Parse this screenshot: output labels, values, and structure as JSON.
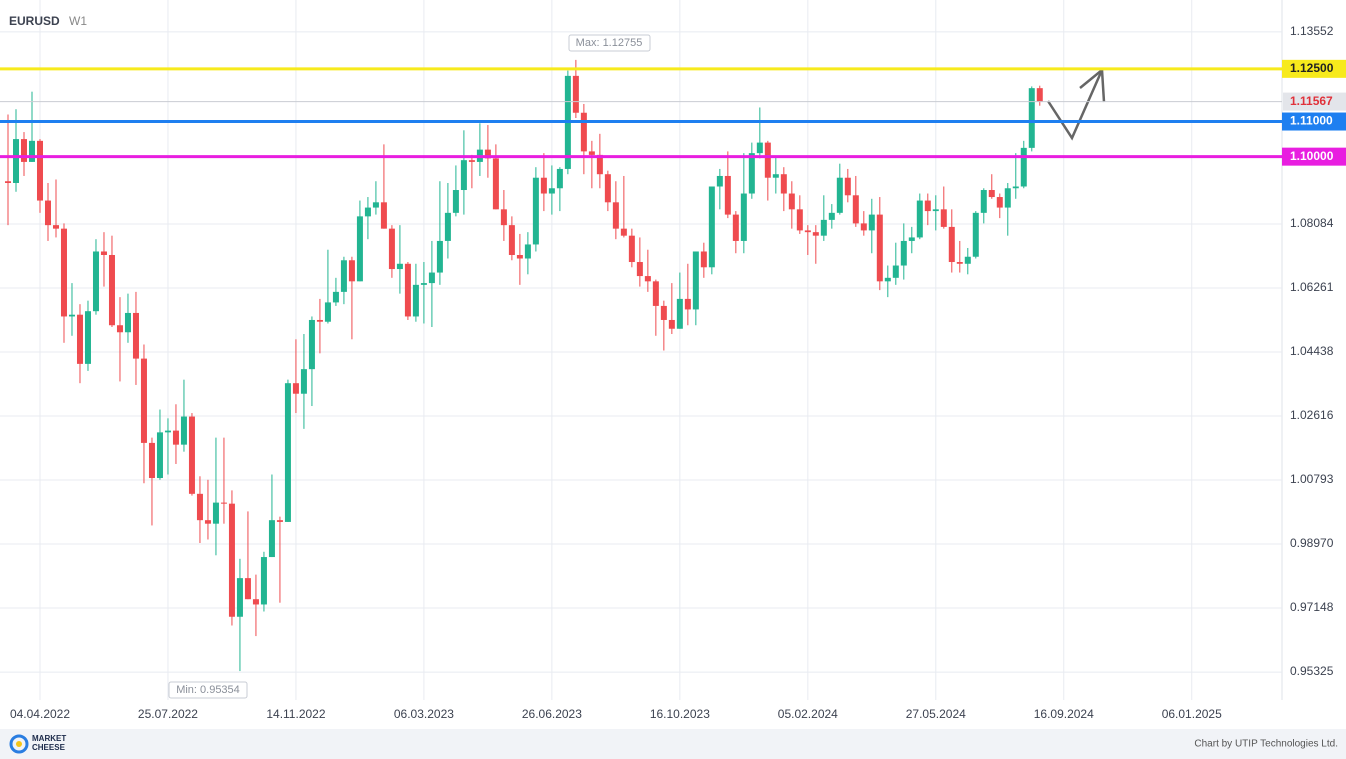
{
  "chart_data": {
    "type": "candlestick",
    "title": "EURUSD",
    "timeframe": "W1",
    "up_color": "#22b592",
    "down_color": "#ef4b4f",
    "x": [
      "07.03.2022",
      "14.03.2022",
      "21.03.2022",
      "28.03.2022",
      "04.04.2022",
      "11.04.2022",
      "18.04.2022",
      "25.04.2022",
      "02.05.2022",
      "09.05.2022",
      "16.05.2022",
      "23.05.2022",
      "30.05.2022",
      "06.06.2022",
      "13.06.2022",
      "20.06.2022",
      "27.06.2022",
      "04.07.2022",
      "11.07.2022",
      "18.07.2022",
      "25.07.2022",
      "01.08.2022",
      "08.08.2022",
      "15.08.2022",
      "22.08.2022",
      "29.08.2022",
      "05.09.2022",
      "12.09.2022",
      "19.09.2022",
      "26.09.2022",
      "03.10.2022",
      "10.10.2022",
      "17.10.2022",
      "24.10.2022",
      "31.10.2022",
      "07.11.2022",
      "14.11.2022",
      "21.11.2022",
      "28.11.2022",
      "05.12.2022",
      "12.12.2022",
      "19.12.2022",
      "26.12.2022",
      "02.01.2023",
      "09.01.2023",
      "16.01.2023",
      "23.01.2023",
      "30.01.2023",
      "06.02.2023",
      "13.02.2023",
      "20.02.2023",
      "27.02.2023",
      "06.03.2023",
      "13.03.2023",
      "20.03.2023",
      "27.03.2023",
      "03.04.2023",
      "10.04.2023",
      "17.04.2023",
      "24.04.2023",
      "01.05.2023",
      "08.05.2023",
      "15.05.2023",
      "22.05.2023",
      "29.05.2023",
      "05.06.2023",
      "12.06.2023",
      "19.06.2023",
      "26.06.2023",
      "03.07.2023",
      "10.07.2023",
      "17.07.2023",
      "24.07.2023",
      "31.07.2023",
      "07.08.2023",
      "14.08.2023",
      "21.08.2023",
      "28.08.2023",
      "04.09.2023",
      "11.09.2023",
      "18.09.2023",
      "25.09.2023",
      "02.10.2023",
      "09.10.2023",
      "16.10.2023",
      "23.10.2023",
      "30.10.2023",
      "06.11.2023",
      "13.11.2023",
      "20.11.2023",
      "27.11.2023",
      "04.12.2023",
      "11.12.2023",
      "18.12.2023",
      "25.12.2023",
      "01.01.2024",
      "08.01.2024",
      "15.01.2024",
      "22.01.2024",
      "29.01.2024",
      "05.02.2024",
      "12.02.2024",
      "19.02.2024",
      "26.02.2024",
      "04.03.2024",
      "11.03.2024",
      "18.03.2024",
      "25.03.2024",
      "01.04.2024",
      "08.04.2024",
      "15.04.2024",
      "22.04.2024",
      "29.04.2024",
      "06.05.2024",
      "13.05.2024",
      "20.05.2024",
      "27.05.2024",
      "03.06.2024",
      "10.06.2024",
      "17.06.2024",
      "24.06.2024",
      "01.07.2024",
      "08.07.2024",
      "15.07.2024",
      "22.07.2024",
      "29.07.2024",
      "05.08.2024",
      "12.08.2024",
      "19.08.2024",
      "26.08.2024"
    ],
    "candles": [
      [
        1.093,
        1.112,
        1.0805,
        1.0925
      ],
      [
        1.0925,
        1.1135,
        1.09,
        1.105
      ],
      [
        1.105,
        1.107,
        1.0945,
        1.0985
      ],
      [
        1.0985,
        1.1185,
        1.0985,
        1.1045
      ],
      [
        1.1045,
        1.105,
        1.084,
        1.0875
      ],
      [
        1.0875,
        1.0925,
        1.076,
        1.0805
      ],
      [
        1.0805,
        1.0935,
        1.077,
        1.0795
      ],
      [
        1.0795,
        1.081,
        1.047,
        1.0545
      ],
      [
        1.0545,
        1.064,
        1.049,
        1.055
      ],
      [
        1.055,
        1.058,
        1.0355,
        1.041
      ],
      [
        1.041,
        1.059,
        1.039,
        1.056
      ],
      [
        1.056,
        1.0765,
        1.055,
        1.073
      ],
      [
        1.073,
        1.0785,
        1.063,
        1.072
      ],
      [
        1.072,
        1.0775,
        1.0515,
        1.052
      ],
      [
        1.052,
        1.06,
        1.036,
        1.05
      ],
      [
        1.05,
        1.061,
        1.047,
        1.0555
      ],
      [
        1.0555,
        1.0615,
        1.035,
        1.0425
      ],
      [
        1.0425,
        1.0465,
        1.007,
        1.0185
      ],
      [
        1.0185,
        1.02,
        0.995,
        1.0085
      ],
      [
        1.0085,
        1.028,
        1.008,
        1.0215
      ],
      [
        1.0215,
        1.0255,
        1.0095,
        1.022
      ],
      [
        1.022,
        1.0295,
        1.0125,
        1.018
      ],
      [
        1.018,
        1.0365,
        1.016,
        1.026
      ],
      [
        1.026,
        1.027,
        1.0035,
        1.004
      ],
      [
        1.004,
        1.009,
        0.99,
        0.9965
      ],
      [
        0.9965,
        1.008,
        0.991,
        0.9955
      ],
      [
        0.9955,
        1.02,
        0.9865,
        1.0015
      ],
      [
        1.0015,
        1.02,
        0.9955,
        1.0012
      ],
      [
        1.0012,
        1.005,
        0.9665,
        0.969
      ],
      [
        0.969,
        0.9855,
        0.95354,
        0.98
      ],
      [
        0.98,
        0.999,
        0.974,
        0.974
      ],
      [
        0.974,
        0.981,
        0.9635,
        0.9725
      ],
      [
        0.9725,
        0.9875,
        0.9705,
        0.986
      ],
      [
        0.986,
        1.0095,
        0.986,
        0.9965
      ],
      [
        0.9965,
        0.9975,
        0.973,
        0.996
      ],
      [
        0.996,
        1.0365,
        0.996,
        1.0355
      ],
      [
        1.0355,
        1.048,
        1.027,
        1.0325
      ],
      [
        1.0325,
        1.0495,
        1.0225,
        1.0395
      ],
      [
        1.0395,
        1.0545,
        1.029,
        1.0535
      ],
      [
        1.0535,
        1.0595,
        1.044,
        1.053
      ],
      [
        1.053,
        1.0735,
        1.0525,
        1.0585
      ],
      [
        1.0585,
        1.0655,
        1.0575,
        1.0615
      ],
      [
        1.0615,
        1.0715,
        1.058,
        1.0705
      ],
      [
        1.0705,
        1.0715,
        1.048,
        1.0645
      ],
      [
        1.0645,
        1.0875,
        1.0645,
        1.083
      ],
      [
        1.083,
        1.0885,
        1.0765,
        1.0855
      ],
      [
        1.0855,
        1.093,
        1.0835,
        1.087
      ],
      [
        1.087,
        1.1035,
        1.0795,
        1.0795
      ],
      [
        1.0795,
        1.0805,
        1.0655,
        1.068
      ],
      [
        1.068,
        1.0805,
        1.061,
        1.0695
      ],
      [
        1.0695,
        1.07,
        1.0535,
        1.0545
      ],
      [
        1.0545,
        1.0695,
        1.053,
        1.0635
      ],
      [
        1.0635,
        1.07,
        1.0525,
        1.064
      ],
      [
        1.064,
        1.076,
        1.0515,
        1.067
      ],
      [
        1.067,
        1.093,
        1.0635,
        1.076
      ],
      [
        1.076,
        1.0925,
        1.071,
        1.084
      ],
      [
        1.084,
        1.0975,
        1.083,
        1.0905
      ],
      [
        1.0905,
        1.1075,
        1.0835,
        1.099
      ],
      [
        1.099,
        1.1005,
        1.091,
        1.0985
      ],
      [
        1.0985,
        1.1095,
        1.0945,
        1.102
      ],
      [
        1.102,
        1.109,
        1.094,
        1.0995
      ],
      [
        1.0995,
        1.1035,
        1.085,
        1.085
      ],
      [
        1.085,
        1.0905,
        1.076,
        1.0805
      ],
      [
        1.0805,
        1.083,
        1.0705,
        1.072
      ],
      [
        1.072,
        1.078,
        1.0635,
        1.071
      ],
      [
        1.071,
        1.0785,
        1.0665,
        1.075
      ],
      [
        1.075,
        1.097,
        1.073,
        1.094
      ],
      [
        1.094,
        1.101,
        1.0845,
        1.0895
      ],
      [
        1.0895,
        1.0975,
        1.0835,
        1.091
      ],
      [
        1.091,
        1.097,
        1.0845,
        1.0965
      ],
      [
        1.0965,
        1.1245,
        1.095,
        1.123
      ],
      [
        1.123,
        1.12755,
        1.111,
        1.1125
      ],
      [
        1.1125,
        1.115,
        1.095,
        1.1015
      ],
      [
        1.1015,
        1.1045,
        1.091,
        1.1005
      ],
      [
        1.1005,
        1.1065,
        1.091,
        1.095
      ],
      [
        1.095,
        1.096,
        1.0845,
        1.087
      ],
      [
        1.087,
        1.093,
        1.0765,
        1.0795
      ],
      [
        1.0795,
        1.0945,
        1.077,
        1.0775
      ],
      [
        1.0775,
        1.0795,
        1.0685,
        1.07
      ],
      [
        1.07,
        1.077,
        1.063,
        1.066
      ],
      [
        1.066,
        1.0735,
        1.0615,
        1.0645
      ],
      [
        1.0645,
        1.065,
        1.049,
        1.0575
      ],
      [
        1.0575,
        1.059,
        1.0448,
        1.0535
      ],
      [
        1.0535,
        1.064,
        1.0495,
        1.051
      ],
      [
        1.051,
        1.067,
        1.051,
        1.0595
      ],
      [
        1.0595,
        1.0695,
        1.052,
        1.0565
      ],
      [
        1.0565,
        1.073,
        1.052,
        1.073
      ],
      [
        1.073,
        1.0755,
        1.0655,
        1.0685
      ],
      [
        1.0685,
        1.0915,
        1.0665,
        1.0915
      ],
      [
        1.0915,
        1.0965,
        1.085,
        1.0945
      ],
      [
        1.0945,
        1.1015,
        1.0825,
        1.0835
      ],
      [
        1.0835,
        1.0845,
        1.0725,
        1.076
      ],
      [
        1.076,
        1.101,
        1.0725,
        1.0895
      ],
      [
        1.0895,
        1.104,
        1.088,
        1.101
      ],
      [
        1.101,
        1.114,
        1.0995,
        1.104
      ],
      [
        1.104,
        1.1045,
        1.0875,
        1.094
      ],
      [
        1.094,
        1.1,
        1.0895,
        1.095
      ],
      [
        1.095,
        1.097,
        1.0845,
        1.0895
      ],
      [
        1.0895,
        1.093,
        1.0795,
        1.085
      ],
      [
        1.085,
        1.089,
        1.078,
        1.079
      ],
      [
        1.079,
        1.0805,
        1.072,
        1.0785
      ],
      [
        1.0785,
        1.0805,
        1.0695,
        1.0775
      ],
      [
        1.0775,
        1.089,
        1.076,
        1.082
      ],
      [
        1.082,
        1.0865,
        1.0795,
        1.084
      ],
      [
        1.084,
        1.098,
        1.0835,
        1.094
      ],
      [
        1.094,
        1.0965,
        1.087,
        1.089
      ],
      [
        1.089,
        1.0945,
        1.08,
        1.081
      ],
      [
        1.081,
        1.0845,
        1.0775,
        1.079
      ],
      [
        1.079,
        1.088,
        1.0725,
        1.0835
      ],
      [
        1.0835,
        1.0885,
        1.062,
        1.0645
      ],
      [
        1.0645,
        1.069,
        1.06,
        1.0655
      ],
      [
        1.0655,
        1.0755,
        1.0635,
        1.069
      ],
      [
        1.069,
        1.081,
        1.065,
        1.076
      ],
      [
        1.076,
        1.08,
        1.0725,
        1.077
      ],
      [
        1.077,
        1.0895,
        1.0765,
        1.0875
      ],
      [
        1.0875,
        1.0895,
        1.0805,
        1.0845
      ],
      [
        1.0845,
        1.089,
        1.079,
        1.085
      ],
      [
        1.085,
        1.0915,
        1.0795,
        1.08
      ],
      [
        1.08,
        1.085,
        1.067,
        1.07
      ],
      [
        1.07,
        1.076,
        1.067,
        1.0695
      ],
      [
        1.0695,
        1.074,
        1.0665,
        1.0715
      ],
      [
        1.0715,
        1.0845,
        1.071,
        1.084
      ],
      [
        1.084,
        1.091,
        1.081,
        1.0905
      ],
      [
        1.0905,
        1.095,
        1.088,
        1.0885
      ],
      [
        1.0885,
        1.0895,
        1.0825,
        1.0855
      ],
      [
        1.0855,
        1.0925,
        1.0775,
        1.091
      ],
      [
        1.091,
        1.101,
        1.088,
        1.0915
      ],
      [
        1.0915,
        1.1045,
        1.091,
        1.1025
      ],
      [
        1.1025,
        1.12,
        1.1015,
        1.1195
      ],
      [
        1.1195,
        1.1202,
        1.1145,
        1.11567
      ]
    ],
    "xlim": [
      "28.02.2022",
      "26.03.2025"
    ],
    "xticks": [
      "04.04.2022",
      "25.07.2022",
      "14.11.2022",
      "06.03.2023",
      "26.06.2023",
      "16.10.2023",
      "05.02.2024",
      "27.05.2024",
      "16.09.2024",
      "06.01.2025"
    ],
    "ylim": [
      0.9453,
      1.1446
    ],
    "yticks": [
      1.13552,
      1.08084,
      1.06261,
      1.04438,
      1.02616,
      1.00793,
      {
        "value": 0.9897,
        "label": "0.98970"
      },
      0.97148,
      0.95325
    ],
    "grid": true,
    "levels": [
      {
        "value": 1.125,
        "label": "1.12500",
        "color": "#f7ea1c",
        "text_color": "#222222"
      },
      {
        "value": 1.11,
        "label": "1.11000",
        "color": "#1e7ff0",
        "text_color": "#ffffff"
      },
      {
        "value": 1.1,
        "label": "1.10000",
        "color": "#e81ee0",
        "text_color": "#ffffff"
      }
    ],
    "last_price": {
      "value": 1.11567,
      "label": "1.11567"
    },
    "max_label": "Max: 1.12755",
    "min_label": "Min: 0.95354"
  },
  "footer": {
    "logo_top": "MARKET",
    "logo_bottom": "CHEESE",
    "credit": "Chart by UTIP Technologies Ltd."
  }
}
